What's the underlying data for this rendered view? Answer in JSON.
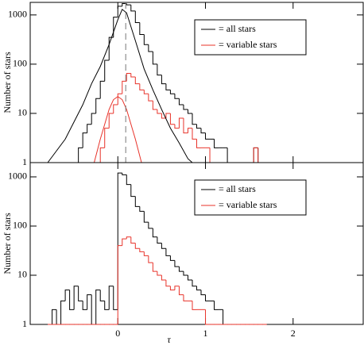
{
  "chart_data": [
    {
      "type": "histogram",
      "ylabel": "Number of stars",
      "log_y": true,
      "legend": "upper right",
      "xlim": [
        -1,
        2.8
      ],
      "ylim": [
        1,
        1800
      ],
      "xticks": [
        0,
        1,
        2
      ],
      "yticks": [
        1,
        10,
        100,
        1000
      ],
      "bins": [
        -0.8,
        -0.75,
        -0.7,
        -0.65,
        -0.6,
        -0.55,
        -0.5,
        -0.45,
        -0.4,
        -0.35,
        -0.3,
        -0.25,
        -0.2,
        -0.15,
        -0.1,
        -0.05,
        0,
        0.05,
        0.1,
        0.15,
        0.2,
        0.25,
        0.3,
        0.35,
        0.4,
        0.45,
        0.5,
        0.55,
        0.6,
        0.65,
        0.7,
        0.75,
        0.8,
        0.85,
        0.9,
        0.95,
        1,
        1.05,
        1.1,
        1.15,
        1.2,
        1.25,
        1.3,
        1.35,
        1.4,
        1.45,
        1.5,
        1.55,
        1.6,
        1.65,
        1.7
      ],
      "series": [
        {
          "name": "= all stars",
          "color": "#000000",
          "values": [
            0,
            0,
            0,
            0,
            0,
            0,
            0,
            2,
            4,
            6,
            10,
            20,
            45,
            120,
            350,
            900,
            1500,
            1700,
            1600,
            1200,
            700,
            400,
            250,
            180,
            100,
            60,
            40,
            30,
            25,
            20,
            15,
            12,
            10,
            6,
            5,
            4,
            3,
            3,
            2,
            2,
            2,
            1,
            1,
            0,
            1,
            0,
            1,
            2,
            0,
            0
          ]
        },
        {
          "name": "= variable stars",
          "color": "#e8332a",
          "values": [
            0,
            0,
            0,
            0,
            0,
            0,
            0,
            0,
            0,
            0,
            0,
            0,
            2,
            5,
            10,
            15,
            25,
            45,
            65,
            55,
            40,
            30,
            25,
            18,
            12,
            10,
            8,
            10,
            6,
            5,
            8,
            4,
            5,
            3,
            2,
            2,
            2,
            1,
            1,
            0,
            0,
            0,
            0,
            0,
            0,
            0,
            0,
            2,
            0,
            0
          ]
        }
      ],
      "curves": [
        {
          "color": "#000000",
          "x": [
            -0.8,
            -0.6,
            -0.4,
            -0.3,
            -0.2,
            -0.1,
            0,
            0.05,
            0.1,
            0.2,
            0.3,
            0.4,
            0.5,
            0.6,
            0.7,
            0.8,
            0.85
          ],
          "values": [
            1,
            3,
            15,
            40,
            90,
            250,
            800,
            1300,
            1100,
            300,
            80,
            30,
            12,
            5,
            2.5,
            1.2,
            1
          ]
        },
        {
          "color": "#e8332a",
          "x": [
            -0.27,
            -0.2,
            -0.1,
            -0.05,
            0,
            0.05,
            0.1,
            0.2,
            0.27
          ],
          "values": [
            1,
            3,
            12,
            19,
            22,
            19,
            12,
            3,
            1
          ]
        }
      ],
      "reference_line": {
        "x": 0.09,
        "color": "#777777",
        "style": "dashed"
      }
    },
    {
      "type": "histogram",
      "ylabel": "Number of stars",
      "xlabel": "τ",
      "log_y": true,
      "legend": "upper right",
      "xlim": [
        -1,
        2.8
      ],
      "ylim": [
        1,
        1950
      ],
      "xticks": [
        0,
        1,
        2
      ],
      "yticks": [
        1,
        10,
        100,
        1000
      ],
      "bins": [
        -0.8,
        -0.75,
        -0.7,
        -0.65,
        -0.6,
        -0.55,
        -0.5,
        -0.45,
        -0.4,
        -0.35,
        -0.3,
        -0.25,
        -0.2,
        -0.15,
        -0.1,
        -0.05,
        0,
        0.05,
        0.1,
        0.15,
        0.2,
        0.25,
        0.3,
        0.35,
        0.4,
        0.45,
        0.5,
        0.55,
        0.6,
        0.65,
        0.7,
        0.75,
        0.8,
        0.85,
        0.9,
        0.95,
        1,
        1.05,
        1.1,
        1.15,
        1.2,
        1.25,
        1.3,
        1.35,
        1.4,
        1.45,
        1.5,
        1.55,
        1.6,
        1.65,
        1.7
      ],
      "series": [
        {
          "name": "= all stars",
          "color": "#000000",
          "values": [
            0,
            2,
            1,
            3,
            5,
            2,
            6,
            3,
            2,
            4,
            1,
            5,
            3,
            2,
            6,
            2,
            1200,
            1100,
            700,
            400,
            250,
            200,
            120,
            90,
            60,
            45,
            35,
            25,
            20,
            15,
            12,
            10,
            8,
            6,
            5,
            4,
            3,
            3,
            2,
            2,
            1,
            1,
            0,
            0,
            0,
            0,
            0,
            0,
            0,
            0
          ]
        },
        {
          "name": "= variable stars",
          "color": "#e8332a",
          "values": [
            0,
            0,
            0,
            0,
            0,
            0,
            0,
            0,
            0,
            0,
            0,
            0,
            0,
            0,
            1,
            0,
            40,
            55,
            60,
            45,
            35,
            30,
            25,
            18,
            12,
            10,
            8,
            6,
            5,
            6,
            4,
            3,
            3,
            2,
            2,
            2,
            1,
            1,
            1,
            0,
            0,
            0,
            0,
            0,
            0,
            0,
            0,
            0,
            0,
            0
          ]
        }
      ]
    }
  ]
}
